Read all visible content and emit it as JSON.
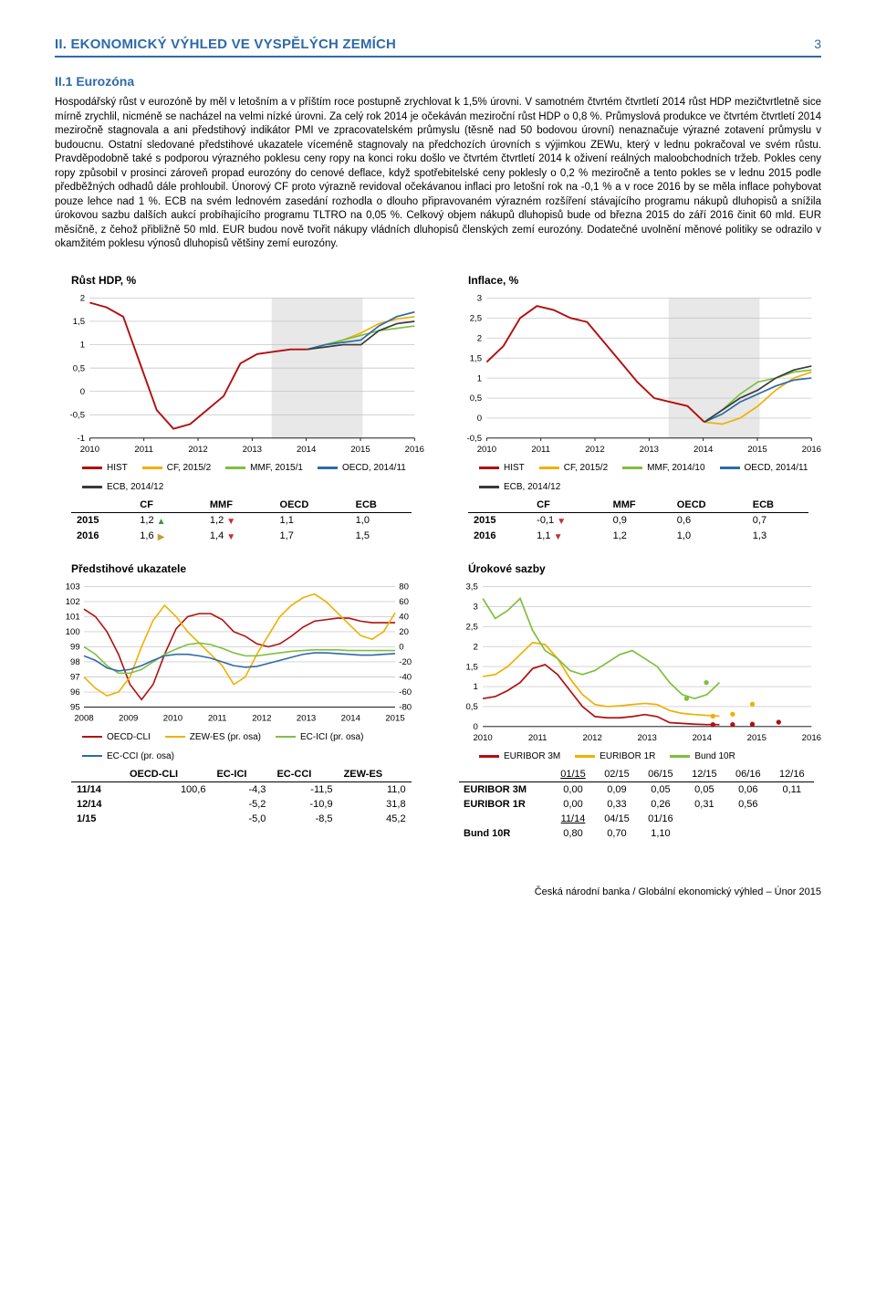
{
  "header": {
    "title": "II. EKONOMICKÝ VÝHLED VE VYSPĚLÝCH ZEMÍCH",
    "pagenum": "3"
  },
  "section": {
    "heading": "II.1 Eurozóna"
  },
  "body": "Hospodářský růst v eurozóně by měl v letošním a v příštím roce postupně zrychlovat k 1,5% úrovni. V samotném čtvrtém čtvrtletí 2014 růst HDP mezičtvrtletně sice mírně zrychlil, nicméně se nacházel na velmi nízké úrovni. Za celý rok 2014 je očekáván meziroční růst HDP o 0,8 %. Průmyslová produkce ve čtvrtém čtvrtletí 2014 meziročně stagnovala a ani předstihový indikátor PMI ve zpracovatelském průmyslu (těsně nad 50 bodovou úrovní) nenaznačuje výrazné zotavení průmyslu v budoucnu. Ostatní sledované předstihové ukazatele víceméně stagnovaly na předchozích úrovních s výjimkou ZEWu, který v lednu pokračoval ve svém růstu. Pravděpodobně také s podporou výrazného poklesu ceny ropy na konci roku došlo ve čtvrtém čtvrtletí 2014 k oživení reálných maloobchodních tržeb. Pokles ceny ropy způsobil v prosinci zároveň propad eurozóny do cenové deflace, když spotřebitelské ceny poklesly o 0,2 % meziročně a tento pokles se v lednu 2015 podle předběžných odhadů dále prohloubil. Únorový CF proto výrazně revidoval očekávanou inflaci pro letošní rok na -0,1 % a v roce 2016 by se měla inflace pohybovat pouze lehce nad 1 %. ECB na svém lednovém zasedání rozhodla o dlouho připravovaném výrazném rozšíření stávajícího programu nákupů dluhopisů a snížila úrokovou sazbu dalších aukcí probíhajícího programu TLTRO na 0,05 %. Celkový objem nákupů dluhopisů bude od března 2015 do září 2016 činit 60 mld. EUR měsíčně, z čehož přibližně 50 mld. EUR budou nově tvořit nákupy vládních dluhopisů členských zemí eurozóny. Dodatečné uvolnění měnové politiky se odrazilo v okamžitém poklesu výnosů dluhopisů většiny zemí eurozóny.",
  "colors": {
    "hist": "#b20f0f",
    "cf": "#f0b000",
    "mmf": "#7fbf3f",
    "oecd": "#2e6aa8",
    "ecb": "#3a3a3a",
    "euribor3m": "#b20f0f",
    "euribor1r": "#f0b000",
    "bund10r": "#7fbf3f",
    "oecd_cli": "#b20f0f",
    "zew_es": "#f0b000",
    "ec_ici": "#7fbf3f",
    "ec_cci": "#2e6aa8",
    "grid": "#bcbcbc",
    "band": "#e8e8e8"
  },
  "gdp": {
    "title": "Růst HDP, %",
    "ylim": [
      -1.0,
      2.0
    ],
    "ystep": 0.5,
    "xlabels": [
      "2010",
      "2011",
      "2012",
      "2013",
      "2014",
      "2015",
      "2016"
    ],
    "band": [
      56,
      84
    ],
    "series": {
      "hist": [
        1.9,
        1.8,
        1.6,
        0.6,
        -0.4,
        -0.8,
        -0.7,
        -0.4,
        -0.1,
        0.6,
        0.8,
        0.85,
        0.9,
        0.9
      ],
      "cf": [
        0.9,
        1.0,
        1.1,
        1.25,
        1.45,
        1.55,
        1.6
      ],
      "mmf": [
        0.9,
        1.0,
        1.1,
        1.2,
        1.3,
        1.35,
        1.4
      ],
      "oecd": [
        0.9,
        1.0,
        1.05,
        1.1,
        1.4,
        1.6,
        1.7
      ],
      "ecb": [
        0.9,
        0.95,
        1.0,
        1.0,
        1.3,
        1.45,
        1.5
      ]
    },
    "legend": [
      {
        "label": "HIST",
        "color": "hist"
      },
      {
        "label": "CF, 2015/2",
        "color": "cf"
      },
      {
        "label": "MMF, 2015/1",
        "color": "mmf"
      },
      {
        "label": "OECD, 2014/11",
        "color": "oecd"
      },
      {
        "label": "ECB, 2014/12",
        "color": "ecb"
      }
    ],
    "table": {
      "cols": [
        "CF",
        "MMF",
        "OECD",
        "ECB"
      ],
      "rows": [
        {
          "year": "2015",
          "vals": [
            "1,2",
            "1,2",
            "1,1",
            "1,0"
          ],
          "arrows": [
            "up",
            "down",
            "",
            ""
          ]
        },
        {
          "year": "2016",
          "vals": [
            "1,6",
            "1,4",
            "1,7",
            "1,5"
          ],
          "arrows": [
            "flat",
            "down",
            "",
            ""
          ]
        }
      ]
    }
  },
  "inflation": {
    "title": "Inflace, %",
    "ylim": [
      -0.5,
      3.0
    ],
    "ystep": 0.5,
    "xlabels": [
      "2010",
      "2011",
      "2012",
      "2013",
      "2014",
      "2015",
      "2016"
    ],
    "band": [
      56,
      84
    ],
    "series": {
      "hist": [
        1.4,
        1.8,
        2.5,
        2.8,
        2.7,
        2.5,
        2.4,
        1.9,
        1.4,
        0.9,
        0.5,
        0.4,
        0.3,
        -0.1
      ],
      "cf": [
        -0.1,
        -0.15,
        0.0,
        0.3,
        0.7,
        1.0,
        1.15
      ],
      "mmf": [
        -0.1,
        0.2,
        0.6,
        0.9,
        1.0,
        1.15,
        1.2
      ],
      "oecd": [
        -0.1,
        0.1,
        0.4,
        0.6,
        0.8,
        0.95,
        1.0
      ],
      "ecb": [
        -0.1,
        0.2,
        0.5,
        0.7,
        1.0,
        1.2,
        1.3
      ]
    },
    "legend": [
      {
        "label": "HIST",
        "color": "hist"
      },
      {
        "label": "CF, 2015/2",
        "color": "cf"
      },
      {
        "label": "MMF, 2014/10",
        "color": "mmf"
      },
      {
        "label": "OECD, 2014/11",
        "color": "oecd"
      },
      {
        "label": "ECB, 2014/12",
        "color": "ecb"
      }
    ],
    "table": {
      "cols": [
        "CF",
        "MMF",
        "OECD",
        "ECB"
      ],
      "rows": [
        {
          "year": "2015",
          "vals": [
            "-0,1",
            "0,9",
            "0,6",
            "0,7"
          ],
          "arrows": [
            "down",
            "",
            "",
            ""
          ]
        },
        {
          "year": "2016",
          "vals": [
            "1,1",
            "1,2",
            "1,0",
            "1,3"
          ],
          "arrows": [
            "down",
            "",
            "",
            ""
          ]
        }
      ]
    }
  },
  "leading": {
    "title": "Předstihové ukazatele",
    "y1lim": [
      95,
      103
    ],
    "y1step": 1,
    "y2lim": [
      -80,
      80
    ],
    "y2step": 20,
    "xlabels": [
      "2008",
      "2009",
      "2010",
      "2011",
      "2012",
      "2013",
      "2014",
      "2015"
    ],
    "legend": [
      {
        "label": "OECD-CLI",
        "color": "oecd_cli"
      },
      {
        "label": "ZEW-ES (pr. osa)",
        "color": "zew_es"
      },
      {
        "label": "EC-ICI (pr. osa)",
        "color": "ec_ici"
      },
      {
        "label": "EC-CCI (pr. osa)",
        "color": "ec_cci"
      }
    ],
    "series": {
      "oecd_cli": [
        101.5,
        101,
        100,
        98.5,
        96.5,
        95.5,
        96.5,
        98.5,
        100.2,
        101,
        101.2,
        101.2,
        100.8,
        100,
        99.7,
        99.2,
        99,
        99.2,
        99.7,
        100.3,
        100.7,
        100.8,
        100.9,
        100.9,
        100.7,
        100.6,
        100.6,
        100.6
      ],
      "zew_es": [
        -40,
        -55,
        -65,
        -60,
        -40,
        0,
        35,
        55,
        40,
        20,
        5,
        -10,
        -25,
        -50,
        -40,
        -10,
        15,
        40,
        55,
        65,
        70,
        60,
        45,
        30,
        15,
        10,
        20,
        45
      ],
      "ec_ici": [
        0,
        -10,
        -25,
        -35,
        -35,
        -30,
        -20,
        -10,
        -3,
        3,
        5,
        3,
        -2,
        -8,
        -12,
        -12,
        -10,
        -8,
        -6,
        -5,
        -4,
        -4,
        -4,
        -5,
        -5,
        -5,
        -5,
        -5
      ],
      "ec_cci": [
        -12,
        -18,
        -28,
        -32,
        -30,
        -25,
        -18,
        -12,
        -10,
        -10,
        -12,
        -15,
        -20,
        -25,
        -27,
        -26,
        -22,
        -18,
        -14,
        -10,
        -8,
        -8,
        -9,
        -10,
        -11,
        -11,
        -10,
        -9
      ]
    },
    "table": {
      "cols": [
        "OECD-CLI",
        "EC-ICI",
        "EC-CCI",
        "ZEW-ES"
      ],
      "rows": [
        {
          "year": "11/14",
          "vals": [
            "100,6",
            "-4,3",
            "-11,5",
            "11,0"
          ]
        },
        {
          "year": "12/14",
          "vals": [
            "",
            "-5,2",
            "-10,9",
            "31,8"
          ]
        },
        {
          "year": "1/15",
          "vals": [
            "",
            "-5,0",
            "-8,5",
            "45,2"
          ]
        }
      ]
    }
  },
  "rates": {
    "title": "Úrokové sazby",
    "ylim": [
      0.0,
      3.5
    ],
    "ystep": 0.5,
    "xlabels": [
      "2010",
      "2011",
      "2012",
      "2013",
      "2014",
      "2015",
      "2016"
    ],
    "legend": [
      {
        "label": "EURIBOR 3M",
        "color": "euribor3m"
      },
      {
        "label": "EURIBOR 1R",
        "color": "euribor1r"
      },
      {
        "label": "Bund 10R",
        "color": "bund10r"
      }
    ],
    "series": {
      "euribor3m": [
        0.7,
        0.75,
        0.9,
        1.1,
        1.45,
        1.55,
        1.3,
        0.9,
        0.5,
        0.25,
        0.22,
        0.22,
        0.25,
        0.3,
        0.25,
        0.1,
        0.08,
        0.06,
        0.05,
        0.05
      ],
      "euribor1r": [
        1.25,
        1.3,
        1.5,
        1.8,
        2.1,
        2.05,
        1.7,
        1.2,
        0.8,
        0.55,
        0.5,
        0.52,
        0.55,
        0.58,
        0.55,
        0.4,
        0.33,
        0.3,
        0.28,
        0.26
      ],
      "bund10r": [
        3.2,
        2.7,
        2.9,
        3.2,
        2.4,
        1.9,
        1.7,
        1.4,
        1.3,
        1.4,
        1.6,
        1.8,
        1.9,
        1.7,
        1.5,
        1.1,
        0.8,
        0.7,
        0.8,
        1.1
      ]
    },
    "fc_points": {
      "euribor3m": [
        [
          70,
          0.05
        ],
        [
          76,
          0.05
        ],
        [
          82,
          0.06
        ],
        [
          90,
          0.11
        ]
      ],
      "euribor1r": [
        [
          70,
          0.26
        ],
        [
          76,
          0.31
        ],
        [
          82,
          0.56
        ]
      ],
      "bund10r": [
        [
          62,
          0.7
        ],
        [
          68,
          1.1
        ]
      ]
    },
    "table": {
      "head": [
        "01/15",
        "02/15",
        "06/15",
        "12/15",
        "06/16",
        "12/16"
      ],
      "head_u": [
        true,
        false,
        false,
        false,
        false,
        false
      ],
      "rows": [
        {
          "label": "EURIBOR 3M",
          "vals": [
            "0,00",
            "0,09",
            "0,05",
            "0,05",
            "0,06",
            "0,11"
          ]
        },
        {
          "label": "EURIBOR 1R",
          "vals": [
            "0,00",
            "0,33",
            "0,26",
            "0,31",
            "0,56",
            ""
          ]
        }
      ],
      "bund_head": [
        "11/14",
        "04/15",
        "01/16"
      ],
      "bund_head_u": [
        true,
        false,
        false
      ],
      "bund_row": {
        "label": "Bund 10R",
        "vals": [
          "0,80",
          "0,70",
          "1,10"
        ]
      }
    }
  },
  "footer": "Česká národní banka / Globální ekonomický výhled – Únor 2015"
}
